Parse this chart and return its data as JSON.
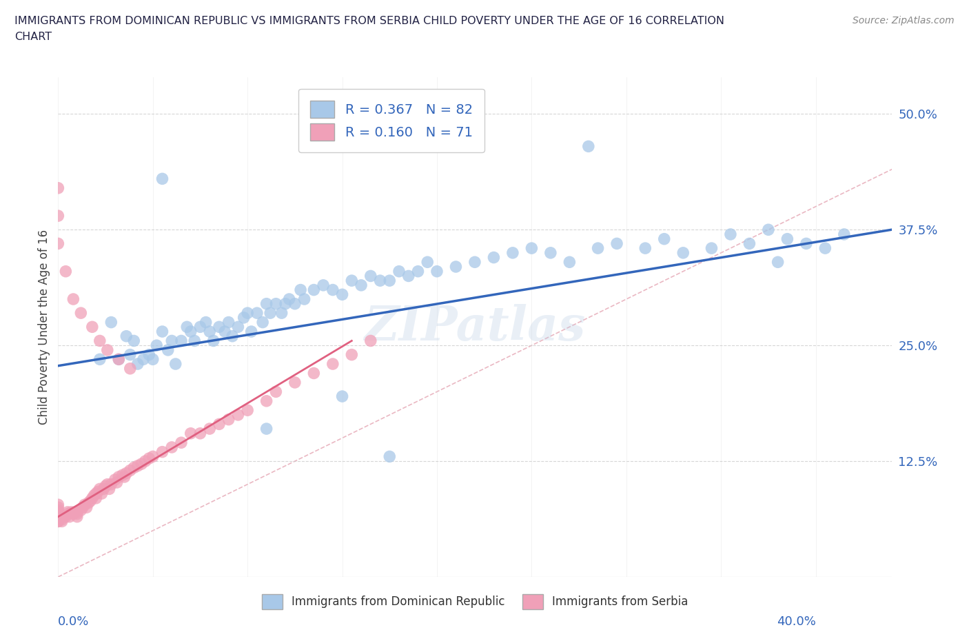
{
  "title_line1": "IMMIGRANTS FROM DOMINICAN REPUBLIC VS IMMIGRANTS FROM SERBIA CHILD POVERTY UNDER THE AGE OF 16 CORRELATION",
  "title_line2": "CHART",
  "source_text": "Source: ZipAtlas.com",
  "ylabel_label": "Child Poverty Under the Age of 16",
  "color_blue": "#a8c8e8",
  "color_pink": "#f0a0b8",
  "trendline_blue": "#3366bb",
  "trendline_pink": "#e06080",
  "trendline_diag_color": "#e8b0bc",
  "watermark": "ZIPatlas",
  "xlim": [
    0.0,
    0.44
  ],
  "ylim": [
    0.0,
    0.54
  ],
  "ytick_vals": [
    0.125,
    0.25,
    0.375,
    0.5
  ],
  "ytick_labels": [
    "12.5%",
    "25.0%",
    "37.5%",
    "50.0%"
  ],
  "blue_x": [
    0.022,
    0.028,
    0.032,
    0.036,
    0.038,
    0.04,
    0.042,
    0.045,
    0.048,
    0.05,
    0.052,
    0.055,
    0.058,
    0.06,
    0.062,
    0.065,
    0.068,
    0.07,
    0.072,
    0.075,
    0.078,
    0.08,
    0.082,
    0.085,
    0.088,
    0.09,
    0.092,
    0.095,
    0.098,
    0.1,
    0.102,
    0.105,
    0.108,
    0.11,
    0.112,
    0.115,
    0.118,
    0.12,
    0.122,
    0.125,
    0.128,
    0.13,
    0.135,
    0.14,
    0.145,
    0.15,
    0.155,
    0.16,
    0.165,
    0.17,
    0.175,
    0.18,
    0.185,
    0.19,
    0.195,
    0.2,
    0.21,
    0.22,
    0.23,
    0.24,
    0.25,
    0.26,
    0.27,
    0.285,
    0.295,
    0.31,
    0.32,
    0.33,
    0.345,
    0.355,
    0.365,
    0.375,
    0.385,
    0.395,
    0.405,
    0.415,
    0.055,
    0.15,
    0.28,
    0.38,
    0.11,
    0.175
  ],
  "blue_y": [
    0.235,
    0.275,
    0.235,
    0.26,
    0.24,
    0.255,
    0.23,
    0.235,
    0.24,
    0.235,
    0.25,
    0.265,
    0.245,
    0.255,
    0.23,
    0.255,
    0.27,
    0.265,
    0.255,
    0.27,
    0.275,
    0.265,
    0.255,
    0.27,
    0.265,
    0.275,
    0.26,
    0.27,
    0.28,
    0.285,
    0.265,
    0.285,
    0.275,
    0.295,
    0.285,
    0.295,
    0.285,
    0.295,
    0.3,
    0.295,
    0.31,
    0.3,
    0.31,
    0.315,
    0.31,
    0.305,
    0.32,
    0.315,
    0.325,
    0.32,
    0.32,
    0.33,
    0.325,
    0.33,
    0.34,
    0.33,
    0.335,
    0.34,
    0.345,
    0.35,
    0.355,
    0.35,
    0.34,
    0.355,
    0.36,
    0.355,
    0.365,
    0.35,
    0.355,
    0.37,
    0.36,
    0.375,
    0.365,
    0.36,
    0.355,
    0.37,
    0.43,
    0.195,
    0.465,
    0.34,
    0.16,
    0.13
  ],
  "pink_x": [
    0.0,
    0.0,
    0.0,
    0.0,
    0.0,
    0.0,
    0.0,
    0.0,
    0.0,
    0.0,
    0.002,
    0.002,
    0.003,
    0.004,
    0.005,
    0.005,
    0.006,
    0.007,
    0.008,
    0.009,
    0.01,
    0.01,
    0.01,
    0.012,
    0.013,
    0.014,
    0.015,
    0.016,
    0.017,
    0.018,
    0.019,
    0.02,
    0.02,
    0.021,
    0.022,
    0.023,
    0.024,
    0.025,
    0.026,
    0.027,
    0.028,
    0.03,
    0.031,
    0.032,
    0.034,
    0.035,
    0.036,
    0.038,
    0.04,
    0.042,
    0.044,
    0.046,
    0.048,
    0.05,
    0.055,
    0.06,
    0.065,
    0.07,
    0.075,
    0.08,
    0.085,
    0.09,
    0.095,
    0.1,
    0.11,
    0.115,
    0.125,
    0.135,
    0.145,
    0.155,
    0.165
  ],
  "pink_y": [
    0.06,
    0.065,
    0.065,
    0.068,
    0.07,
    0.072,
    0.075,
    0.078,
    0.06,
    0.065,
    0.06,
    0.062,
    0.065,
    0.065,
    0.068,
    0.07,
    0.065,
    0.07,
    0.068,
    0.07,
    0.065,
    0.068,
    0.07,
    0.072,
    0.075,
    0.078,
    0.075,
    0.08,
    0.082,
    0.085,
    0.088,
    0.085,
    0.09,
    0.092,
    0.095,
    0.09,
    0.095,
    0.098,
    0.1,
    0.095,
    0.1,
    0.105,
    0.102,
    0.108,
    0.11,
    0.108,
    0.112,
    0.115,
    0.118,
    0.12,
    0.122,
    0.125,
    0.128,
    0.13,
    0.135,
    0.14,
    0.145,
    0.155,
    0.155,
    0.16,
    0.165,
    0.17,
    0.175,
    0.18,
    0.19,
    0.2,
    0.21,
    0.22,
    0.23,
    0.24,
    0.255
  ],
  "pink_outliers_x": [
    0.0,
    0.0,
    0.0,
    0.004,
    0.008,
    0.012,
    0.018,
    0.022,
    0.026,
    0.032,
    0.038
  ],
  "pink_outliers_y": [
    0.42,
    0.39,
    0.36,
    0.33,
    0.3,
    0.285,
    0.27,
    0.255,
    0.245,
    0.235,
    0.225
  ],
  "blue_trend_x": [
    0.0,
    0.44
  ],
  "blue_trend_y": [
    0.228,
    0.375
  ],
  "pink_trend_x": [
    0.0,
    0.155
  ],
  "pink_trend_y": [
    0.065,
    0.255
  ]
}
